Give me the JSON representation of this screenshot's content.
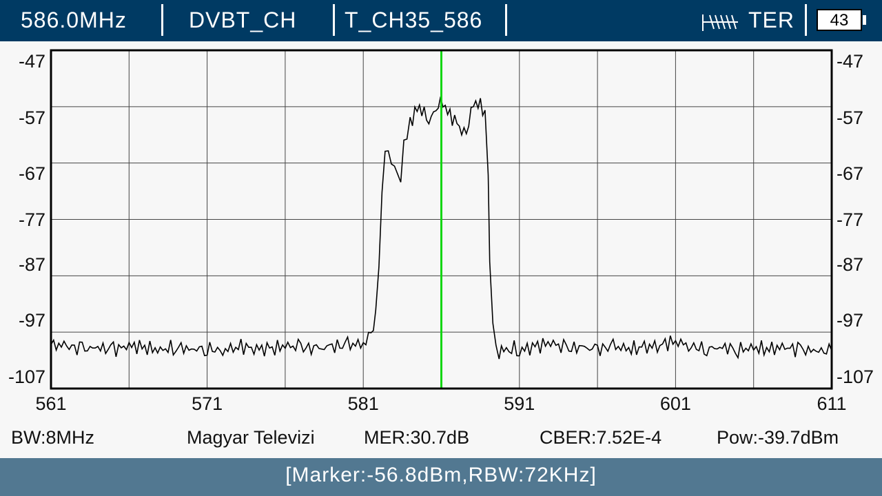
{
  "header": {
    "frequency": "586.0MHz",
    "mode": "DVBT_CH",
    "channel": "T_CH35_586",
    "antenna_icon": "antenna-icon",
    "band": "TER",
    "battery": "43"
  },
  "chart_data": {
    "type": "line",
    "xlim": [
      561,
      611
    ],
    "ylim": [
      -107,
      -47
    ],
    "x_ticks": [
      "561",
      "571",
      "581",
      "591",
      "601",
      "611"
    ],
    "y_ticks": [
      "-47",
      "-57",
      "-67",
      "-77",
      "-87",
      "-97",
      "-107"
    ],
    "grid": true,
    "marker_x": 586.0,
    "series": [
      {
        "x": [
          561,
          562,
          563,
          564,
          565,
          566,
          567,
          568,
          569,
          570,
          571,
          572,
          573,
          574,
          575,
          576,
          577,
          578,
          579,
          580,
          581,
          581.5,
          581.8,
          582.0,
          582.2,
          582.4,
          582.6,
          582.8,
          583.0,
          583.2,
          583.4,
          583.6,
          583.8,
          584.0,
          584.3,
          584.6,
          584.9,
          585.2,
          585.5,
          585.8,
          586.1,
          586.4,
          586.7,
          587.0,
          587.3,
          587.6,
          587.9,
          588.2,
          588.5,
          588.8,
          589.0,
          589.1,
          589.3,
          589.5,
          589.7,
          590.0,
          590.5,
          591,
          592,
          593,
          594,
          595,
          596,
          597,
          598,
          599,
          600,
          601,
          602,
          603,
          604,
          605,
          606,
          607,
          608,
          609,
          610,
          611
        ],
        "y": [
          -99.2,
          -99.5,
          -100.0,
          -99.8,
          -100.1,
          -99.4,
          -99.7,
          -100.2,
          -99.6,
          -100.0,
          -99.9,
          -100.3,
          -99.5,
          -99.8,
          -100.1,
          -99.4,
          -99.7,
          -100.0,
          -99.6,
          -99.3,
          -99.0,
          -98.0,
          -93.0,
          -85.0,
          -72.0,
          -63.5,
          -64.5,
          -66.0,
          -67.0,
          -69.0,
          -70.0,
          -64.0,
          -63.0,
          -60.0,
          -58.0,
          -57.0,
          -58.0,
          -59.5,
          -58.0,
          -56.5,
          -56.0,
          -58.0,
          -59.0,
          -60.0,
          -61.5,
          -62.0,
          -58.0,
          -56.2,
          -57.0,
          -58.0,
          -70.0,
          -85.0,
          -95.0,
          -99.5,
          -100.5,
          -100.0,
          -99.8,
          -100.2,
          -99.6,
          -98.8,
          -100.0,
          -99.7,
          -100.1,
          -99.5,
          -100.0,
          -99.8,
          -99.2,
          -98.6,
          -99.5,
          -100.0,
          -99.6,
          -100.1,
          -99.8,
          -100.0,
          -99.7,
          -100.1,
          -100.4,
          -100.3
        ]
      }
    ]
  },
  "info": {
    "bw": "BW:8MHz",
    "service": "Magyar Televizi",
    "mer": "MER:30.7dB",
    "cber": "CBER:7.52E-4",
    "pow": "Pow:-39.7dBm"
  },
  "footer": {
    "marker": "[Marker:-56.8dBm,RBW:72KHz]"
  }
}
